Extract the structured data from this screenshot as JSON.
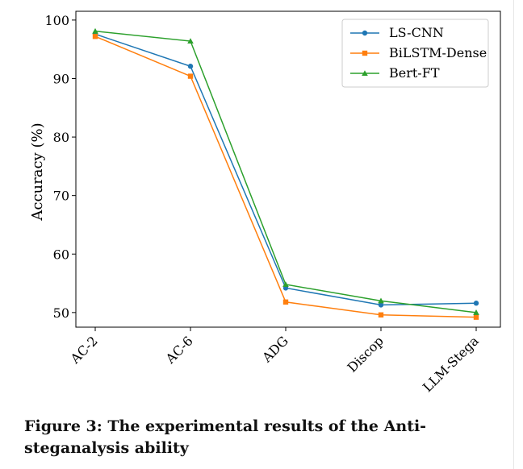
{
  "chart_data": {
    "type": "line",
    "categories": [
      "AC-2",
      "AC-6",
      "ADG",
      "Discop",
      "LLM-Stega"
    ],
    "series": [
      {
        "name": "LS-CNN",
        "color": "#1f77b4",
        "marker": "circle",
        "values": [
          97.6,
          92.1,
          54.2,
          51.3,
          51.6
        ]
      },
      {
        "name": "BiLSTM-Dense",
        "color": "#ff7f0e",
        "marker": "square",
        "values": [
          97.2,
          90.4,
          51.8,
          49.6,
          49.2
        ]
      },
      {
        "name": "Bert-FT",
        "color": "#2ca02c",
        "marker": "triangle",
        "values": [
          98.1,
          96.4,
          54.8,
          52.0,
          50.0
        ]
      }
    ],
    "ylabel": "Accuracy (%)",
    "xlabel": "",
    "ylim": [
      47.5,
      101.5
    ],
    "yticks": [
      50,
      60,
      70,
      80,
      90,
      100
    ],
    "legend": "top-right",
    "grid": false
  },
  "caption": "Figure 3: The experimental results of the Anti-steganalysis ability"
}
